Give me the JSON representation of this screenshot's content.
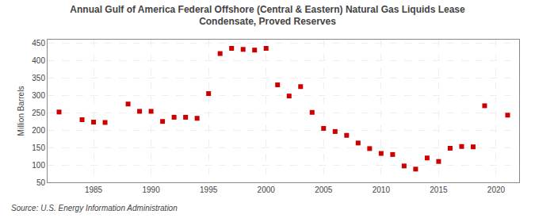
{
  "chart_data": {
    "type": "scatter",
    "title": "Annual Gulf of America Federal Offshore (Central & Eastern) Natural Gas Liquids Lease\nCondensate, Proved Reserves",
    "ylabel": "Million Barrels",
    "annotations": [
      "Source: U.S. Energy Information Administration"
    ],
    "x": [
      1982,
      1984,
      1985,
      1986,
      1988,
      1989,
      1990,
      1991,
      1992,
      1993,
      1994,
      1995,
      1996,
      1997,
      1998,
      1999,
      2000,
      2001,
      2002,
      2003,
      2004,
      2005,
      2006,
      2007,
      2008,
      2009,
      2010,
      2011,
      2012,
      2013,
      2014,
      2015,
      2016,
      2017,
      2018,
      2019,
      2021
    ],
    "values": [
      252,
      230,
      223,
      222,
      275,
      254,
      254,
      225,
      237,
      237,
      234,
      305,
      420,
      435,
      432,
      430,
      435,
      330,
      298,
      325,
      251,
      205,
      196,
      185,
      163,
      147,
      133,
      130,
      97,
      88,
      120,
      110,
      148,
      153,
      152,
      270,
      243
    ],
    "color": "#cc0000",
    "marker": "square",
    "xlim": [
      1981,
      2022
    ],
    "ylim": [
      50,
      460
    ],
    "xticks": [
      1985,
      1990,
      1995,
      2000,
      2005,
      2010,
      2015,
      2020
    ],
    "yticks": [
      50,
      100,
      150,
      200,
      250,
      300,
      350,
      400,
      450
    ],
    "grid": true
  }
}
